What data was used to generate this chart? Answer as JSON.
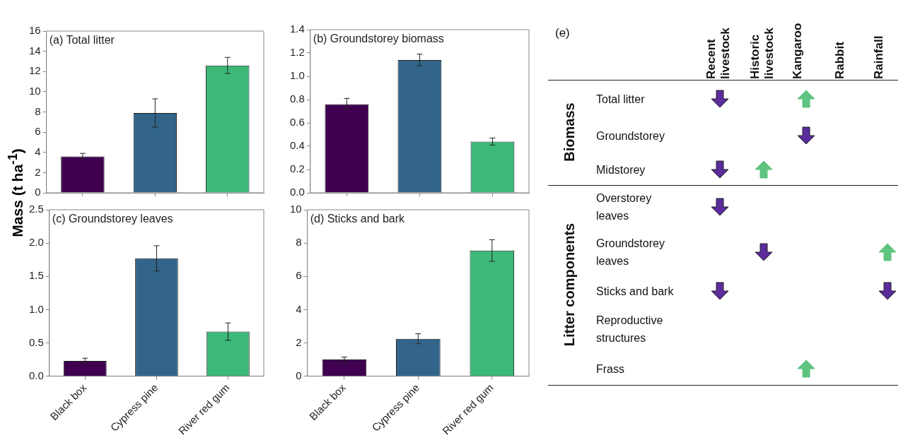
{
  "chart_data": [
    {
      "type": "bar",
      "title": "(a) Total litter",
      "ylabel": "Mass (t ha$^{-1}$)",
      "categories": [
        null,
        null,
        null
      ],
      "values": [
        3.6,
        7.9,
        12.6
      ],
      "colors": [
        "#3f0050",
        "#33658a",
        "#3cb878"
      ],
      "errors": [
        [
          3.3,
          3.9
        ],
        [
          6.5,
          9.3
        ],
        [
          11.8,
          13.4
        ]
      ],
      "ylim": [
        0,
        16
      ],
      "yticks": [
        0,
        2,
        4,
        6,
        8,
        10,
        12,
        14,
        16
      ],
      "tick_labels": "y"
    },
    {
      "type": "bar",
      "title": "(b) Groundstorey biomass",
      "categories": [
        null,
        null,
        null
      ],
      "values": [
        0.76,
        1.14,
        0.44
      ],
      "colors": [
        "#3f0050",
        "#33658a",
        "#3cb878"
      ],
      "errors": [
        [
          0.72,
          0.81
        ],
        [
          1.09,
          1.19
        ],
        [
          0.41,
          0.47
        ]
      ],
      "ylim": [
        0,
        1.4
      ],
      "yticks": [
        {
          "value": 0,
          "label": "0.0"
        },
        {
          "value": 0.2,
          "label": "0.2"
        },
        {
          "value": 0.4,
          "label": "0.4"
        },
        {
          "value": 0.6,
          "label": "0.6"
        },
        {
          "value": 0.8,
          "label": "0.8"
        },
        {
          "value": 1,
          "label": "1.0"
        },
        {
          "value": 1.2,
          "label": "1.2"
        },
        {
          "value": 1.4,
          "label": "1.4"
        }
      ],
      "tick_labels": "y"
    },
    {
      "type": "bar",
      "title": "(c) Groundstorey leaves",
      "categories": [
        "Black box",
        "Cypress pine",
        "River red gum"
      ],
      "values": [
        0.23,
        1.77,
        0.67
      ],
      "colors": [
        "#3f0050",
        "#33658a",
        "#3cb878"
      ],
      "errors": [
        [
          0.19,
          0.27
        ],
        [
          1.58,
          1.96
        ],
        [
          0.54,
          0.8
        ]
      ],
      "ylim": [
        0,
        2.5
      ],
      "yticks": [
        {
          "value": 0,
          "label": "0.0"
        },
        {
          "value": 0.5,
          "label": "0.5"
        },
        {
          "value": 1,
          "label": "1.0"
        },
        {
          "value": 1.5,
          "label": "1.5"
        },
        {
          "value": 2,
          "label": "2.0"
        },
        {
          "value": 2.5,
          "label": "2.5"
        }
      ]
    },
    {
      "type": "bar",
      "title": "(d) Sticks and bark",
      "categories": [
        "Black box",
        "Cypress pine",
        "River red gum"
      ],
      "values": [
        1.0,
        2.25,
        7.55
      ],
      "colors": [
        "#3f0050",
        "#33658a",
        "#3cb878"
      ],
      "errors": [
        [
          0.85,
          1.15
        ],
        [
          1.95,
          2.55
        ],
        [
          6.9,
          8.2
        ]
      ],
      "ylim": [
        0,
        10
      ],
      "yticks": [
        0,
        2,
        4,
        6,
        8,
        10
      ]
    },
    {
      "type": "other",
      "title": "(e)",
      "categories": [
        "Recent livestock",
        "Historic livestock",
        "Kangaroo",
        "Rabbit",
        "Rainfall"
      ],
      "y_categories": [
        "Total litter",
        "Groundstorey",
        "Midstorey",
        "Overstorey leaves",
        "Groundstorey leaves",
        "Sticks and bark",
        "Reproductive structures",
        "Frass"
      ],
      "annotations": [
        "Biomass",
        "Litter components"
      ]
    }
  ]
}
